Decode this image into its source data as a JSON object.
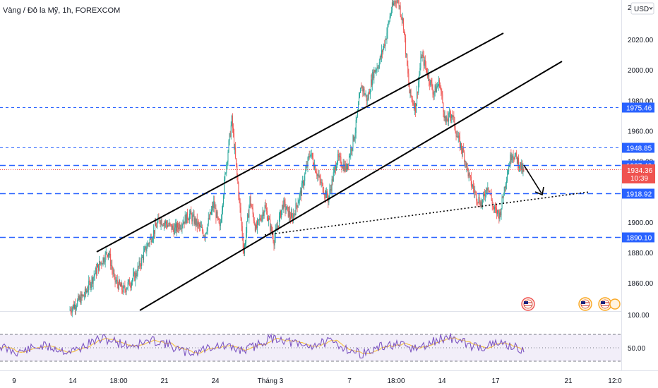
{
  "header": {
    "symbol_title": "Vàng / Đô la Mỹ, 1h, FOREXCOM",
    "currency": "USD"
  },
  "colors": {
    "up": "#26a69a",
    "down": "#ef5350",
    "level": "#2962ff",
    "rsi": "#7e57c2",
    "rsi_ma": "#f5c242",
    "price_tag": "#ef5350"
  },
  "chart_data": {
    "type": "candlestick",
    "title": "Vàng / Đô la Mỹ, 1h, FOREXCOM",
    "ylim": [
      1840,
      2040
    ],
    "y_ticks": [
      "1860.00",
      "1880.00",
      "1900.00",
      "1920.00",
      "1940.00",
      "1960.00",
      "1980.00",
      "2000.00",
      "2020.00",
      "20"
    ],
    "x_ticks": [
      "9",
      "14",
      "18:00",
      "21",
      "24",
      "Tháng 3",
      "7",
      "18:00",
      "14",
      "17",
      "21",
      "12:0"
    ],
    "price_path": [
      [
        0,
        1842
      ],
      [
        5,
        1852
      ],
      [
        10,
        1872
      ],
      [
        13,
        1881
      ],
      [
        15,
        1862
      ],
      [
        18,
        1855
      ],
      [
        22,
        1865
      ],
      [
        26,
        1885
      ],
      [
        30,
        1902
      ],
      [
        35,
        1895
      ],
      [
        40,
        1905
      ],
      [
        45,
        1892
      ],
      [
        48,
        1912
      ],
      [
        50,
        1895
      ],
      [
        52,
        1935
      ],
      [
        54,
        1967
      ],
      [
        56,
        1925
      ],
      [
        58,
        1880
      ],
      [
        60,
        1915
      ],
      [
        62,
        1895
      ],
      [
        65,
        1910
      ],
      [
        68,
        1888
      ],
      [
        71,
        1912
      ],
      [
        74,
        1902
      ],
      [
        77,
        1920
      ],
      [
        80,
        1946
      ],
      [
        83,
        1928
      ],
      [
        86,
        1915
      ],
      [
        89,
        1942
      ],
      [
        92,
        1935
      ],
      [
        95,
        1960
      ],
      [
        97,
        1990
      ],
      [
        99,
        1980
      ],
      [
        101,
        1998
      ],
      [
        103,
        2005
      ],
      [
        105,
        2020
      ],
      [
        107,
        2040
      ],
      [
        109,
        2048
      ],
      [
        111,
        2030
      ],
      [
        113,
        1985
      ],
      [
        115,
        1975
      ],
      [
        117,
        2010
      ],
      [
        119,
        1998
      ],
      [
        121,
        1985
      ],
      [
        123,
        1992
      ],
      [
        125,
        1965
      ],
      [
        127,
        1972
      ],
      [
        129,
        1955
      ],
      [
        131,
        1945
      ],
      [
        133,
        1928
      ],
      [
        135,
        1918
      ],
      [
        137,
        1912
      ],
      [
        139,
        1925
      ],
      [
        141,
        1908
      ],
      [
        143,
        1905
      ],
      [
        145,
        1928
      ],
      [
        147,
        1946
      ],
      [
        149,
        1940
      ],
      [
        151,
        1932
      ]
    ],
    "levels": [
      {
        "label": "1975.46",
        "value": 1975.46,
        "style": "thin-dashed"
      },
      {
        "label": "1948.85",
        "value": 1948.85,
        "style": "thin-dashed"
      },
      {
        "label": "1937.40",
        "value": 1937.4,
        "style": "thick-dashed"
      },
      {
        "label": "1918.92",
        "value": 1918.92,
        "style": "thick-dashed"
      },
      {
        "label": "1890.10",
        "value": 1890.1,
        "style": "thick-dashed"
      }
    ],
    "last_price": {
      "value": "1934.36",
      "countdown": "10:39"
    },
    "rsi": {
      "ylim": [
        20,
        80
      ],
      "bands": [
        30,
        70
      ],
      "tick_labels": [
        "100.00",
        "50.00"
      ]
    }
  }
}
